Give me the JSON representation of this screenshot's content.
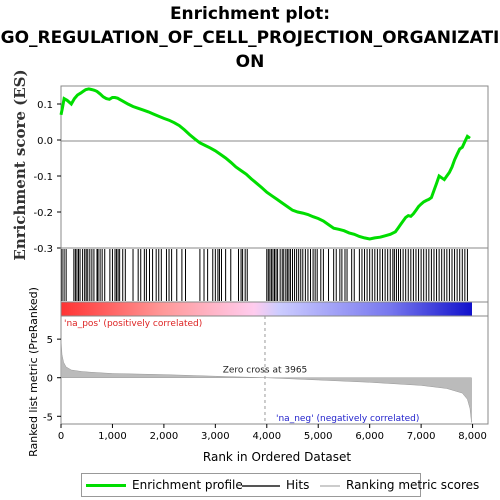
{
  "title_lines": [
    "Enrichment plot:",
    "GO_REGULATION_OF_CELL_PROJECTION_ORGANIZATI",
    "ON"
  ],
  "legend": {
    "items": [
      {
        "label": "Enrichment profile",
        "color": "#00dd00"
      },
      {
        "label": "Hits",
        "color": "#555555"
      },
      {
        "label": "Ranking metric scores",
        "color": "#cccccc"
      }
    ]
  },
  "chart_data": {
    "type": "line",
    "top_panel": {
      "ylabel": "Enrichment score (ES)",
      "ylim": [
        -0.3,
        0.15
      ],
      "yticks": [
        "0.1",
        "0.0",
        "-0.1",
        "-0.2",
        "-0.3"
      ],
      "ytick_values": [
        0.1,
        0.0,
        -0.1,
        -0.2,
        -0.3
      ],
      "series": [
        {
          "name": "Enrichment profile",
          "color": "#00dd00",
          "x": [
            0,
            30,
            60,
            120,
            200,
            260,
            320,
            380,
            430,
            480,
            540,
            600,
            650,
            700,
            760,
            820,
            880,
            940,
            1000,
            1050,
            1100,
            1150,
            1200,
            1300,
            1400,
            1500,
            1600,
            1700,
            1800,
            1900,
            2000,
            2100,
            2200,
            2300,
            2400,
            2500,
            2600,
            2700,
            2800,
            2900,
            3000,
            3100,
            3200,
            3300,
            3400,
            3500,
            3600,
            3700,
            3800,
            3900,
            4000,
            4100,
            4200,
            4300,
            4400,
            4500,
            4600,
            4700,
            4800,
            4900,
            5000,
            5100,
            5200,
            5300,
            5400,
            5500,
            5600,
            5700,
            5800,
            5900,
            6000,
            6100,
            6200,
            6300,
            6400,
            6500,
            6550,
            6600,
            6650,
            6700,
            6750,
            6800,
            6850,
            6900,
            6950,
            7000,
            7050,
            7100,
            7150,
            7200,
            7250,
            7300,
            7350,
            7400,
            7450,
            7500,
            7550,
            7600,
            7650,
            7700,
            7750,
            7800,
            7850,
            7900,
            7950
          ],
          "y": [
            0.07,
            0.09,
            0.115,
            0.11,
            0.1,
            0.115,
            0.125,
            0.13,
            0.135,
            0.14,
            0.142,
            0.14,
            0.138,
            0.135,
            0.128,
            0.12,
            0.115,
            0.113,
            0.118,
            0.118,
            0.116,
            0.112,
            0.108,
            0.1,
            0.093,
            0.088,
            0.083,
            0.078,
            0.072,
            0.066,
            0.06,
            0.055,
            0.048,
            0.04,
            0.028,
            0.015,
            0.003,
            -0.008,
            -0.015,
            -0.022,
            -0.03,
            -0.04,
            -0.05,
            -0.062,
            -0.075,
            -0.085,
            -0.095,
            -0.108,
            -0.12,
            -0.132,
            -0.145,
            -0.155,
            -0.165,
            -0.175,
            -0.185,
            -0.195,
            -0.2,
            -0.203,
            -0.207,
            -0.213,
            -0.218,
            -0.225,
            -0.235,
            -0.245,
            -0.248,
            -0.252,
            -0.258,
            -0.262,
            -0.268,
            -0.272,
            -0.275,
            -0.272,
            -0.27,
            -0.266,
            -0.262,
            -0.255,
            -0.245,
            -0.235,
            -0.225,
            -0.215,
            -0.21,
            -0.212,
            -0.205,
            -0.195,
            -0.185,
            -0.178,
            -0.172,
            -0.168,
            -0.165,
            -0.16,
            -0.14,
            -0.12,
            -0.1,
            -0.105,
            -0.11,
            -0.1,
            -0.09,
            -0.075,
            -0.055,
            -0.04,
            -0.025,
            -0.02,
            -0.005,
            0.01,
            0.005
          ]
        }
      ]
    },
    "hits_panel": {
      "hit_ranks": [
        20,
        60,
        100,
        250,
        280,
        310,
        340,
        370,
        420,
        460,
        490,
        520,
        560,
        600,
        640,
        700,
        720,
        760,
        800,
        850,
        950,
        1000,
        1050,
        1080,
        1110,
        1140,
        1200,
        1250,
        1400,
        1500,
        1550,
        1620,
        1660,
        1720,
        1780,
        1850,
        1900,
        1950,
        2050,
        2100,
        2150,
        2250,
        2350,
        2420,
        2700,
        2780,
        2850,
        2950,
        3000,
        3050,
        3080,
        3120,
        3200,
        3300,
        3450,
        3500,
        3530,
        3580,
        3620,
        4000,
        4030,
        4060,
        4090,
        4120,
        4150,
        4180,
        4210,
        4260,
        4300,
        4330,
        4370,
        4400,
        4430,
        4460,
        4500,
        4540,
        4580,
        4620,
        4660,
        4700,
        4750,
        4800,
        4850,
        4900,
        4940,
        4980,
        5050,
        5100,
        5200,
        5300,
        5350,
        5420,
        5460,
        5520,
        5560,
        5650,
        5700,
        5800,
        5850,
        5900,
        5950,
        6000,
        6050,
        6100,
        6150,
        6200,
        6250,
        6300,
        6350,
        6400,
        6450,
        6480,
        6520,
        6560,
        6600,
        6650,
        6700,
        6750,
        6800,
        6850,
        6900,
        6950,
        7000,
        7050,
        7100,
        7150,
        7200,
        7250,
        7300,
        7350,
        7400,
        7450,
        7500,
        7550,
        7600,
        7650,
        7700,
        7750,
        7800,
        7850,
        7900
      ]
    },
    "bottom_panel": {
      "ylabel": "Ranked list metric (PreRanked)",
      "xlabel": "Rank in Ordered Dataset",
      "xlim": [
        0,
        8300
      ],
      "ylim": [
        -6,
        8
      ],
      "yticks": [
        "5",
        "0",
        "-5"
      ],
      "ytick_values": [
        5,
        0,
        -5
      ],
      "xticks": [
        "0",
        "1,000",
        "2,000",
        "3,000",
        "4,000",
        "5,000",
        "6,000",
        "7,000",
        "8,000"
      ],
      "xtick_values": [
        0,
        1000,
        2000,
        3000,
        4000,
        5000,
        6000,
        7000,
        8000
      ],
      "zero_cross": 3965,
      "zero_cross_label": "Zero cross at 3965",
      "pos_label": "'na_pos' (positively correlated)",
      "neg_label": "'na_neg' (negatively correlated)",
      "metric_x": [
        0,
        20,
        50,
        100,
        200,
        400,
        600,
        1000,
        2000,
        3000,
        3965,
        5000,
        6000,
        7000,
        7500,
        7800,
        7900,
        7950,
        7980
      ],
      "metric_y": [
        5.0,
        3.0,
        2.0,
        1.4,
        1.0,
        0.8,
        0.7,
        0.55,
        0.4,
        0.2,
        0.0,
        -0.3,
        -0.6,
        -1.0,
        -1.4,
        -2.0,
        -2.8,
        -4.0,
        -5.8
      ]
    }
  }
}
